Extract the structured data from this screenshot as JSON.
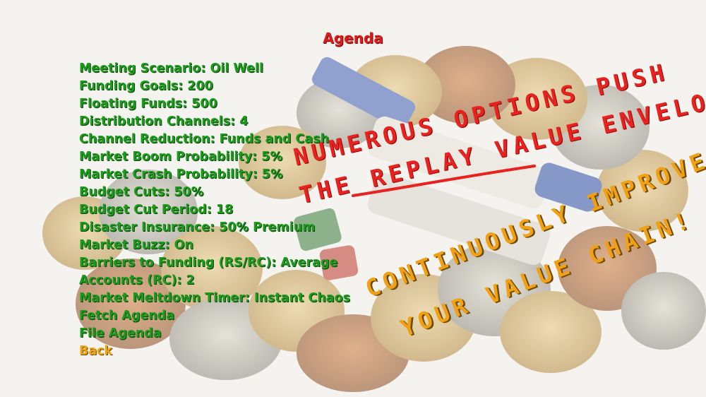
{
  "menu": {
    "title": "Agenda",
    "items": [
      {
        "label": "Meeting Scenario: Oil Well"
      },
      {
        "label": "Funding Goals: 200"
      },
      {
        "label": "Floating Funds: 500"
      },
      {
        "label": "Distribution Channels: 4"
      },
      {
        "label": "Channel Reduction: Funds and Cash"
      },
      {
        "label": "Market Boom Probability: 5%"
      },
      {
        "label": "Market Crash Probability: 5%"
      },
      {
        "label": "Budget Cuts: 50%"
      },
      {
        "label": "Budget Cut Period: 18"
      },
      {
        "label": "Disaster Insurance: 50% Premium"
      },
      {
        "label": "Market Buzz: On"
      },
      {
        "label": "Barriers to Funding (RS/RC): Average"
      },
      {
        "label": "Accounts (RC): 2"
      },
      {
        "label": "Market Meltdown Timer: Instant Chaos"
      },
      {
        "label": "Fetch Agenda"
      },
      {
        "label": "File Agenda"
      }
    ],
    "back_label": "Back"
  },
  "slogans": {
    "red_line1": "NUMEROUS OPTIONS PUSH",
    "red_line2": "THE REPLAY VALUE ENVELOPE",
    "orange_line1": "CONTINUOUSLY IMPROVE",
    "orange_line2": "YOUR VALUE CHAIN!"
  },
  "colors": {
    "title": "#d71e1e",
    "menu_item": "#1a9c1a",
    "back": "#f2a20d",
    "slogan_red": "#e8231f",
    "slogan_orange": "#f0a012"
  },
  "background": {
    "description_icon": "coins-and-markers-image"
  }
}
